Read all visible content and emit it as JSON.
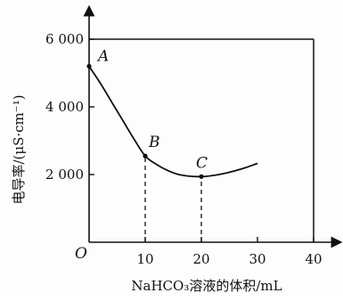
{
  "chart_data": {
    "type": "line",
    "title": "",
    "xlabel": "NaHCO₃溶液的体积/mL",
    "ylabel": "电导率/(μS·cm⁻¹)",
    "origin_label": "O",
    "xlim": [
      0,
      40
    ],
    "ylim": [
      0,
      6000
    ],
    "x_ticks": [
      {
        "value": 10,
        "label": "10"
      },
      {
        "value": 20,
        "label": "20"
      },
      {
        "value": 30,
        "label": "30"
      },
      {
        "value": 40,
        "label": "40"
      }
    ],
    "y_ticks": [
      {
        "value": 2000,
        "label": "2 000"
      },
      {
        "value": 4000,
        "label": "4 000"
      },
      {
        "value": 6000,
        "label": "6 000"
      }
    ],
    "grid": false,
    "series": [
      {
        "x": [
          0,
          2,
          4,
          6,
          8,
          10,
          12,
          14,
          16,
          18,
          20,
          22,
          24,
          26,
          28,
          30
        ],
        "y": [
          5200,
          4700,
          4150,
          3600,
          3050,
          2550,
          2300,
          2120,
          2000,
          1950,
          1940,
          1970,
          2030,
          2110,
          2210,
          2330
        ]
      }
    ],
    "labeled_points": [
      {
        "label": "A",
        "x": 0,
        "y": 5200
      },
      {
        "label": "B",
        "x": 10,
        "y": 2550
      },
      {
        "label": "C",
        "x": 20,
        "y": 1940
      }
    ],
    "reference_lines": [
      {
        "type": "vertical-dashed",
        "x": 10,
        "from_y": 0,
        "to_y": 2550
      },
      {
        "type": "vertical-dashed",
        "x": 20,
        "from_y": 0,
        "to_y": 1940
      },
      {
        "type": "horizontal-solid",
        "y": 6000,
        "from_x": 0,
        "to_x": 40
      },
      {
        "type": "vertical-solid",
        "x": 40,
        "from_y": 0,
        "to_y": 6000
      }
    ]
  }
}
